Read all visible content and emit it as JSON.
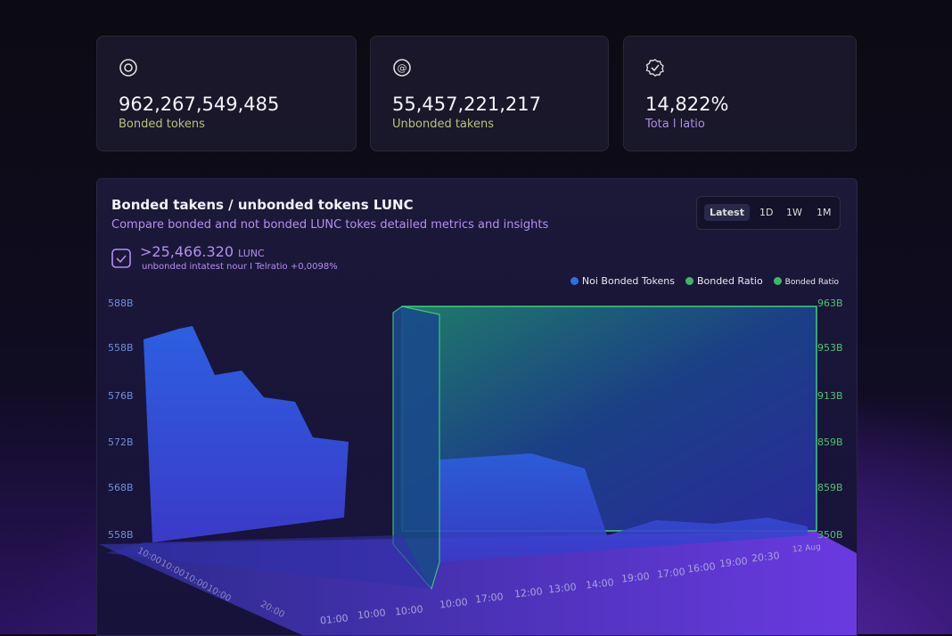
{
  "cards": [
    {
      "value": "962,267,549,485",
      "label": "Bonded tokens"
    },
    {
      "value": "55,457,221,217",
      "label": "Unbonded takens"
    },
    {
      "value": "14,822%",
      "label": "Tota l latio"
    }
  ],
  "panel": {
    "title": "Bonded takens / unbonded tokens LUNC",
    "subtitle": "Compare bonded and not bonded LUNC tokes detailed metrics and insights",
    "stat": {
      "value": ">25,466.320",
      "unit": "LUNC",
      "note": "unbonded intatest nour I Telratio +0,0098%"
    },
    "ranges": [
      "Latest",
      "1D",
      "1W",
      "1M"
    ],
    "legend": [
      "Noi Bonded Tokens",
      "Bonded Ratio",
      "Bonded Ratio"
    ],
    "left_axis": [
      "588B",
      "558B",
      "576B",
      "572B",
      "568B",
      "558B"
    ],
    "right_axis": [
      "963B",
      "953B",
      "913B",
      "859B",
      "859B",
      "350B"
    ],
    "side_times": [
      "10:00",
      "10:00",
      "10:00",
      "10:00",
      "20:00"
    ],
    "bottom_times": [
      "01:00",
      "10:00",
      "10:00",
      "10:00",
      "17:00",
      "12:00",
      "13:00",
      "14:00",
      "19:00",
      "17:00",
      "16:00",
      "19:00",
      "20:30",
      "12 Aug"
    ]
  }
}
